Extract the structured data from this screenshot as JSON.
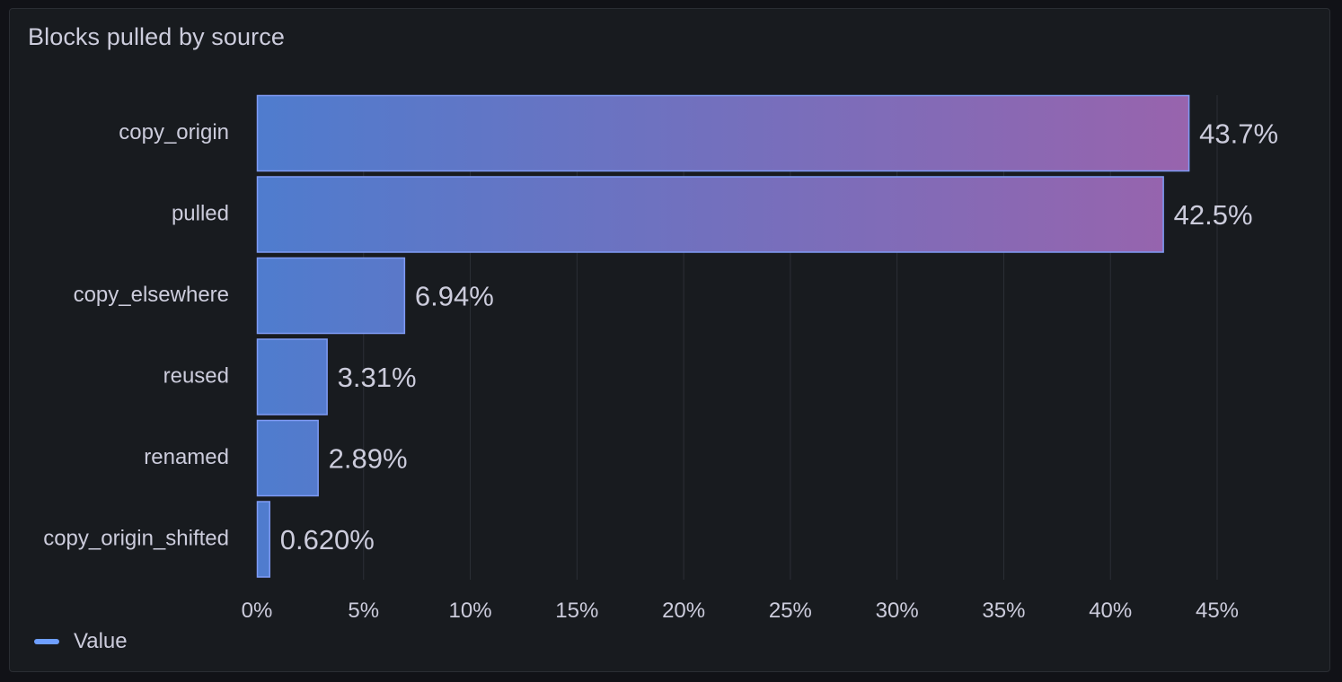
{
  "panel": {
    "title": "Blocks pulled by source"
  },
  "legend": {
    "label": "Value",
    "color": "#6e9fff"
  },
  "colors": {
    "gradient_start": "#4f7cce",
    "gradient_end": "#9a63ac",
    "bar_border": "#7f9bf5",
    "grid": "#2c2f36",
    "text": "#ccccdc"
  },
  "chart_data": {
    "type": "bar",
    "orientation": "horizontal",
    "categories": [
      "copy_origin",
      "pulled",
      "copy_elsewhere",
      "reused",
      "renamed",
      "copy_origin_shifted"
    ],
    "values": [
      43.7,
      42.5,
      6.94,
      3.31,
      2.89,
      0.62
    ],
    "value_labels": [
      "43.7%",
      "42.5%",
      "6.94%",
      "3.31%",
      "2.89%",
      "0.620%"
    ],
    "unit": "%",
    "xlim": [
      0,
      45
    ],
    "xticks": [
      0,
      5,
      10,
      15,
      20,
      25,
      30,
      35,
      40,
      45
    ],
    "xtick_labels": [
      "0%",
      "5%",
      "10%",
      "15%",
      "20%",
      "25%",
      "30%",
      "35%",
      "40%",
      "45%"
    ],
    "grid": true,
    "legend_position": "bottom-left",
    "series": [
      {
        "name": "Value"
      }
    ]
  }
}
